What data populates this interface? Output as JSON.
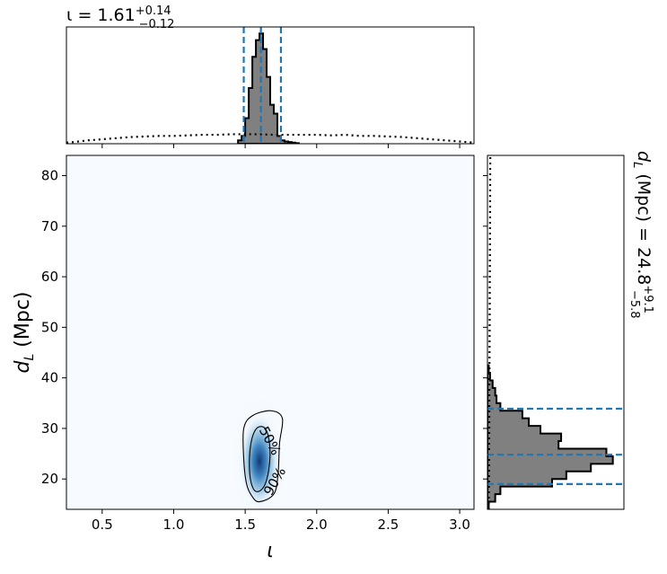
{
  "chart_data": {
    "type": "corner",
    "top_title": {
      "prefix": "ι = 1.61",
      "sup": "+0.14",
      "sub": "−0.12"
    },
    "right_title": {
      "prefix": "d",
      "prefix_sub": "L",
      "mid": " (Mpc) = 24.8",
      "sup": "+9.1",
      "sub": "−5.8"
    },
    "xlabel": {
      "main": "ι"
    },
    "ylabel": {
      "main": "d",
      "sub": "L",
      "rest": " (Mpc)"
    },
    "xlim": [
      0.25,
      3.1
    ],
    "ylim": [
      14,
      84
    ],
    "xticks": [
      "0.5",
      "1.0",
      "1.5",
      "2.0",
      "2.5",
      "3.0"
    ],
    "xtick_values": [
      0.5,
      1.0,
      1.5,
      2.0,
      2.5,
      3.0
    ],
    "yticks": [
      "20",
      "30",
      "40",
      "50",
      "60",
      "70",
      "80"
    ],
    "ytick_values": [
      20,
      30,
      40,
      50,
      60,
      70,
      80
    ],
    "iota_quantiles": [
      1.49,
      1.61,
      1.75
    ],
    "dL_quantiles": [
      19.0,
      24.8,
      33.9
    ],
    "iota_hist": {
      "edges": [
        1.45,
        1.475,
        1.5,
        1.525,
        1.55,
        1.575,
        1.6,
        1.625,
        1.65,
        1.675,
        1.7,
        1.725,
        1.75,
        1.775,
        1.8,
        1.825,
        1.85,
        1.875
      ],
      "counts": [
        0.03,
        0.07,
        0.23,
        0.5,
        0.78,
        0.93,
        0.99,
        0.85,
        0.6,
        0.35,
        0.27,
        0.07,
        0.03,
        0.02,
        0.015,
        0.01,
        0.005
      ]
    },
    "iota_prior": {
      "x": [
        0.25,
        0.3,
        0.4,
        0.5,
        0.6,
        0.7,
        0.8,
        0.9,
        1.0,
        1.1,
        1.2,
        1.3,
        1.4,
        1.5,
        1.6,
        1.7,
        1.8,
        1.9,
        2.0,
        2.1,
        2.2,
        2.3,
        2.4,
        2.5,
        2.6,
        2.7,
        2.8,
        2.9,
        3.0,
        3.1
      ],
      "y": [
        0.01,
        0.015,
        0.03,
        0.04,
        0.05,
        0.06,
        0.065,
        0.07,
        0.07,
        0.075,
        0.08,
        0.08,
        0.085,
        0.085,
        0.085,
        0.08,
        0.08,
        0.08,
        0.08,
        0.075,
        0.08,
        0.07,
        0.07,
        0.065,
        0.06,
        0.05,
        0.04,
        0.03,
        0.02,
        0.01
      ]
    },
    "dL_hist": {
      "edges": [
        14,
        15.5,
        17,
        18.5,
        20,
        21.5,
        23,
        24.5,
        26,
        27.5,
        29,
        30.5,
        32,
        33.5,
        35,
        36.5,
        38,
        39.5,
        41,
        42.5
      ],
      "counts": [
        0.01,
        0.06,
        0.1,
        0.5,
        0.61,
        0.8,
        0.97,
        0.92,
        0.55,
        0.57,
        0.41,
        0.32,
        0.27,
        0.1,
        0.07,
        0.06,
        0.04,
        0.02,
        0.01
      ]
    },
    "dL_prior": {
      "y": [
        14,
        20,
        30,
        40,
        50,
        60,
        70,
        80,
        84
      ],
      "x": [
        0.01,
        0.012,
        0.014,
        0.015,
        0.017,
        0.018,
        0.02,
        0.021,
        0.022
      ]
    },
    "density_2d": {
      "center": [
        1.6,
        23.5
      ],
      "sigma": [
        0.06,
        4.2
      ]
    },
    "contours": [
      {
        "level": "50%",
        "points": [
          [
            1.59,
            17.5
          ],
          [
            1.64,
            19
          ],
          [
            1.67,
            23
          ],
          [
            1.67,
            27
          ],
          [
            1.64,
            30
          ],
          [
            1.58,
            30
          ],
          [
            1.54,
            27
          ],
          [
            1.53,
            22
          ],
          [
            1.55,
            18.5
          ]
        ]
      },
      {
        "level": "90%",
        "points": [
          [
            1.6,
            15.5
          ],
          [
            1.7,
            17
          ],
          [
            1.73,
            21
          ],
          [
            1.74,
            27
          ],
          [
            1.76,
            32
          ],
          [
            1.68,
            33.5
          ],
          [
            1.55,
            32.5
          ],
          [
            1.49,
            30
          ],
          [
            1.49,
            24
          ],
          [
            1.51,
            19
          ],
          [
            1.55,
            16.5
          ]
        ]
      }
    ],
    "contour_labels": [
      {
        "text": "50%",
        "x": 1.67,
        "y": 27.5,
        "rotation": 62
      },
      {
        "text": "90%",
        "x": 1.71,
        "y": 19.5,
        "rotation": -60
      }
    ],
    "colors": {
      "quantile_line": "#1f77b4",
      "hist_fill": "#808080",
      "density_low": "#f7fbff",
      "density_high": "#08519c"
    }
  }
}
